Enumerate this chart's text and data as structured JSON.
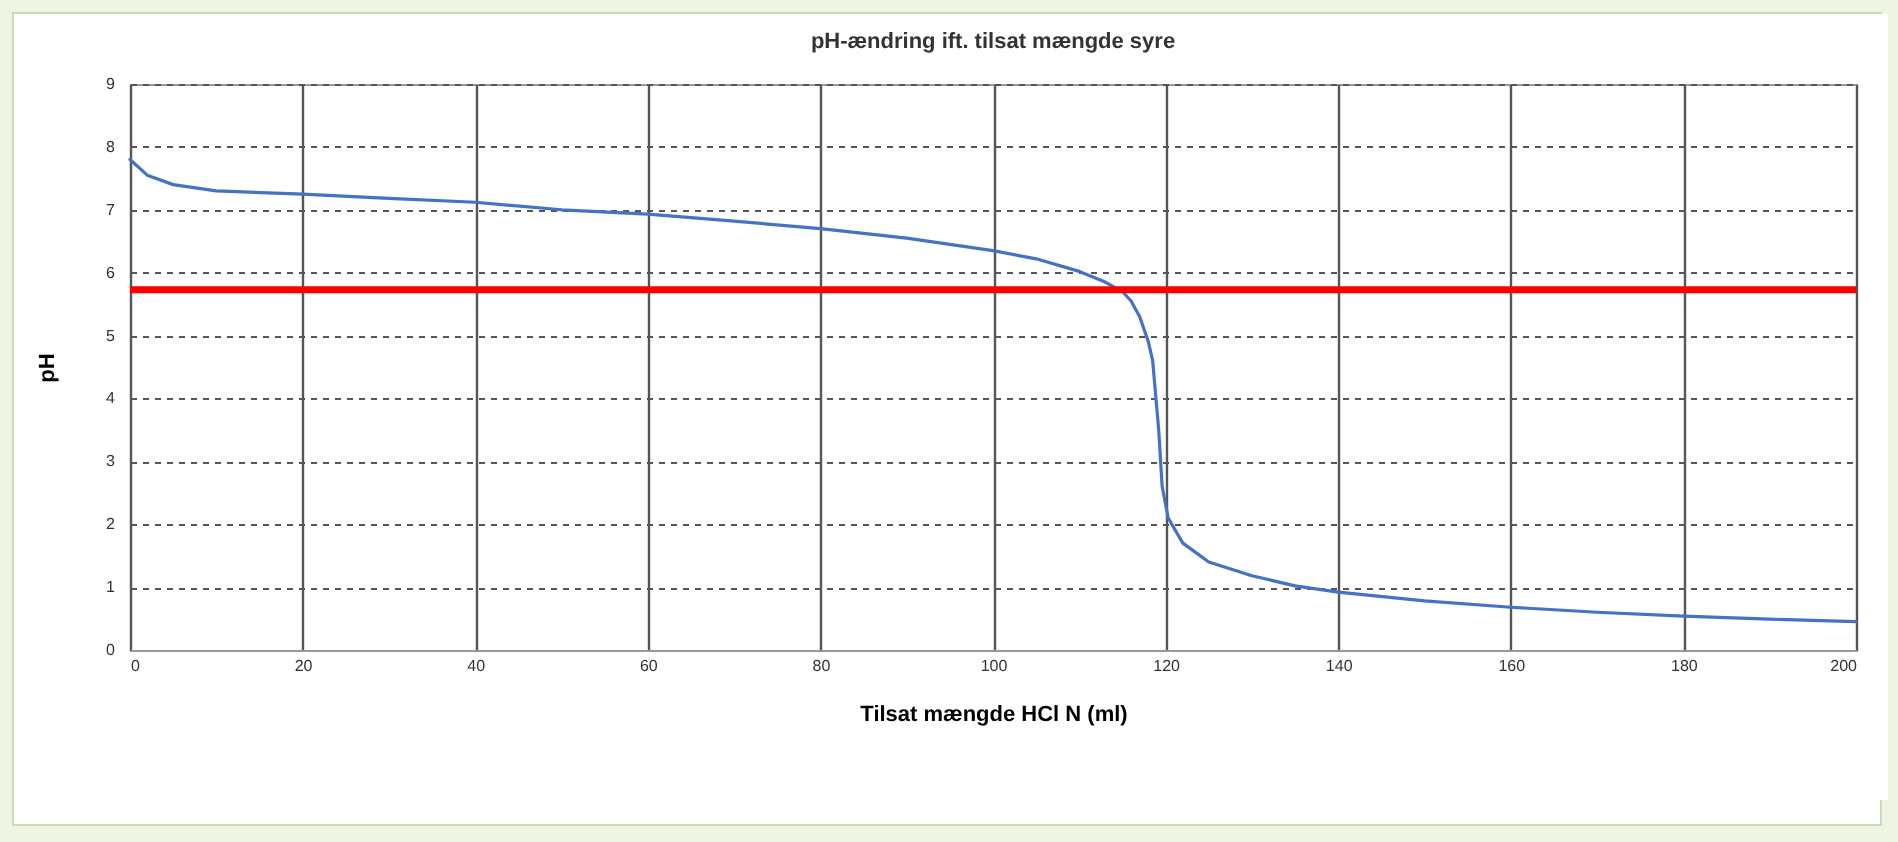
{
  "chart_data": {
    "type": "line",
    "title": "pH-ændring ift. tilsat mængde syre",
    "xlabel": "Tilsat mængde HCl N (ml)",
    "ylabel": "pH",
    "x": [
      0,
      2,
      5,
      10,
      20,
      30,
      40,
      50,
      60,
      70,
      80,
      90,
      100,
      105,
      110,
      113,
      115,
      116,
      117,
      118,
      118.5,
      119.2,
      119.6,
      120.3,
      122,
      125,
      130,
      135,
      140,
      150,
      160,
      170,
      180,
      190,
      200
    ],
    "series": [
      {
        "color": "#4472c4",
        "values": [
          7.8,
          7.55,
          7.4,
          7.3,
          7.25,
          7.18,
          7.12,
          7.0,
          6.93,
          6.82,
          6.7,
          6.55,
          6.35,
          6.22,
          6.02,
          5.85,
          5.7,
          5.55,
          5.3,
          4.9,
          4.6,
          3.5,
          2.6,
          2.1,
          1.7,
          1.4,
          1.18,
          1.02,
          0.92,
          0.78,
          0.68,
          0.6,
          0.54,
          0.49,
          0.45
        ]
      }
    ],
    "xlim": [
      0,
      200
    ],
    "xticks": [
      0,
      20,
      40,
      60,
      80,
      100,
      120,
      140,
      160,
      180,
      200
    ],
    "ylim": [
      0,
      9
    ],
    "yticks": [
      0,
      1,
      2,
      3,
      4,
      5,
      6,
      7,
      8,
      9
    ],
    "grid": true,
    "ref_lines": [
      {
        "axis": "y",
        "value": 5.73,
        "color": "#ff0000"
      }
    ]
  }
}
